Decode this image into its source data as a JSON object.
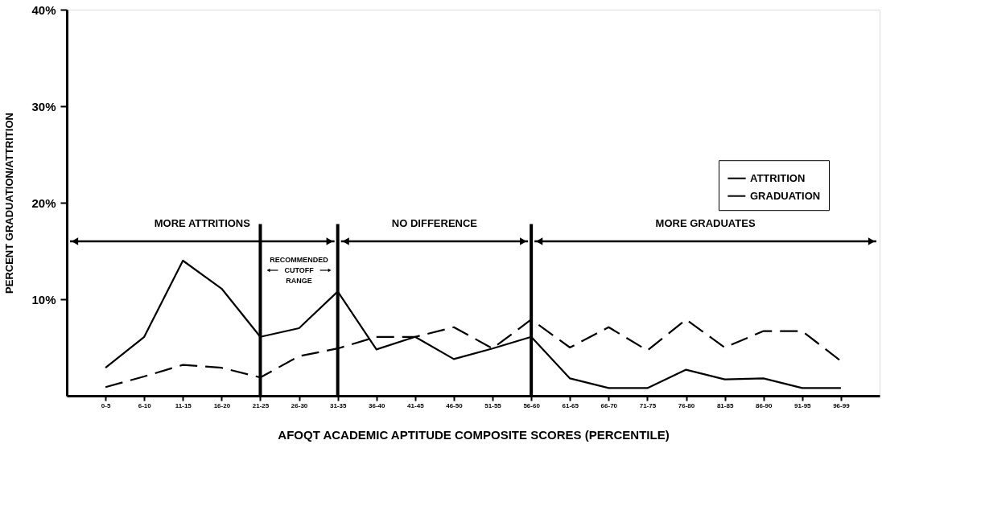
{
  "chart_data": {
    "type": "line",
    "xlabel": "AFOQT ACADEMIC APTITUDE COMPOSITE SCORES (PERCENTILE)",
    "ylabel": "PERCENT GRADUATION/ATTRITION",
    "categories": [
      "0-5",
      "6-10",
      "11-15",
      "16-20",
      "21-25",
      "26-30",
      "31-35",
      "36-40",
      "41-45",
      "46-50",
      "51-55",
      "56-60",
      "61-65",
      "66-70",
      "71-75",
      "76-80",
      "81-85",
      "86-90",
      "91-95",
      "96-99"
    ],
    "series": [
      {
        "name": "ATTRITION",
        "color": "#000000",
        "line_style": "solid",
        "values": [
          2.9,
          6.1,
          14.0,
          11.1,
          6.1,
          7.0,
          10.8,
          4.8,
          6.1,
          3.8,
          4.9,
          6.1,
          1.8,
          0.8,
          0.8,
          2.7,
          1.7,
          1.8,
          0.8,
          0.8
        ]
      },
      {
        "name": "GRADUATION",
        "color": "#000000",
        "line_style": "dashed",
        "values": [
          0.9,
          2.0,
          3.2,
          2.9,
          1.9,
          4.1,
          4.9,
          6.1,
          6.1,
          7.1,
          4.9,
          7.9,
          5.0,
          7.1,
          4.7,
          7.9,
          5.0,
          6.7,
          6.7,
          3.6
        ]
      }
    ],
    "ylim": [
      0,
      40
    ],
    "yticks": [
      {
        "value": 10,
        "label": "10%"
      },
      {
        "value": 20,
        "label": "20%"
      },
      {
        "value": 30,
        "label": "30%"
      },
      {
        "value": 40,
        "label": "40%"
      }
    ],
    "ref_lines": [
      {
        "axis": "x",
        "value": "21-25",
        "color": "#000000"
      },
      {
        "axis": "x",
        "value": "31-35",
        "color": "#000000"
      },
      {
        "axis": "x",
        "value": "56-60",
        "color": "#000000"
      }
    ],
    "annotations": [
      "MORE ATTRITIONS",
      "RECOMMENDED CUTOFF RANGE",
      "NO DIFFERENCE",
      "MORE GRADUATES"
    ],
    "legend": "right",
    "grid": false,
    "marker": "none"
  }
}
